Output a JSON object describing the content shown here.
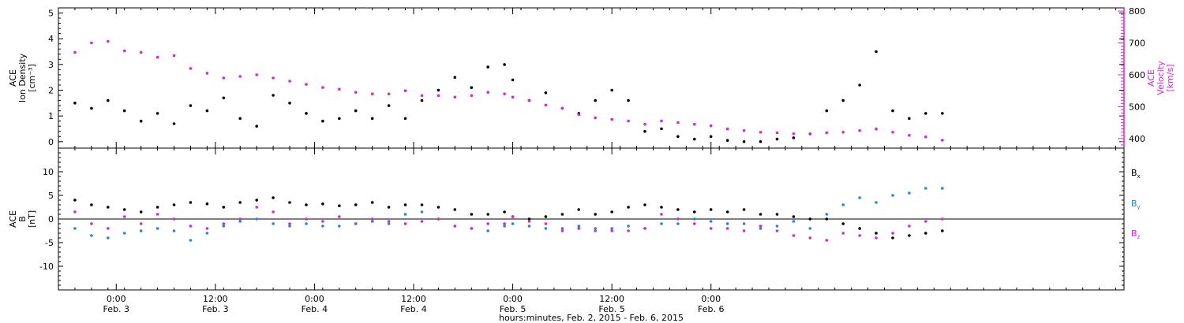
{
  "chart_data": [
    {
      "type": "scatter",
      "panel": "top",
      "ylabel_left": [
        "ACE",
        "Ion Density",
        "[cm⁻³]"
      ],
      "ylabel_right": [
        "ACE",
        "Velocity",
        "[km/s]"
      ],
      "ylim_left": [
        -0.25,
        5.2
      ],
      "ylim_right": [
        370,
        810
      ],
      "yticks_left": [
        "0",
        "1",
        "2",
        "3",
        "4",
        "5"
      ],
      "yticks_right": [
        "400",
        "500",
        "600",
        "700",
        "800"
      ],
      "x_unit": "hours since Feb. 2, 2015 00:00",
      "series": [
        {
          "name": "Ion Density",
          "color": "#000000",
          "x": [
            19.0,
            21,
            23,
            25,
            27,
            29,
            31,
            33,
            35,
            37,
            39,
            41,
            43,
            45,
            47,
            49,
            51,
            53,
            55,
            57,
            59,
            61,
            63,
            65,
            67,
            69,
            71,
            72,
            74,
            76,
            78,
            80,
            82,
            84,
            86,
            88,
            90,
            92,
            94,
            96,
            98,
            100,
            102,
            104,
            106,
            108,
            110,
            112,
            114,
            116,
            118,
            120,
            122,
            124
          ],
          "y": [
            1.5,
            1.3,
            1.6,
            1.2,
            0.8,
            1.1,
            0.7,
            1.4,
            1.2,
            1.7,
            0.9,
            0.6,
            1.8,
            1.5,
            1.1,
            0.8,
            0.9,
            1.2,
            0.9,
            1.4,
            0.9,
            1.6,
            2.0,
            2.5,
            2.1,
            2.9,
            3.0,
            2.4,
            1.6,
            1.9,
            1.3,
            1.1,
            1.6,
            2.0,
            1.6,
            0.4,
            0.5,
            0.2,
            0.1,
            0.2,
            0.05,
            0.0,
            0.0,
            0.1,
            0.15,
            0.3,
            1.2,
            1.6,
            2.2,
            3.5,
            1.2,
            0.9,
            1.1,
            1.1
          ]
        },
        {
          "name": "Velocity",
          "color": "#e020e0",
          "x": [
            19.0,
            21,
            23,
            25,
            27,
            29,
            31,
            33,
            35,
            37,
            39,
            41,
            43,
            45,
            47,
            49,
            51,
            53,
            55,
            57,
            59,
            61,
            63,
            65,
            67,
            69,
            71,
            72,
            74,
            76,
            78,
            80,
            82,
            84,
            86,
            88,
            90,
            92,
            94,
            96,
            98,
            100,
            102,
            104,
            106,
            108,
            110,
            112,
            114,
            116,
            118,
            120,
            122,
            124
          ],
          "y": [
            670,
            700,
            705,
            675,
            670,
            655,
            660,
            620,
            605,
            590,
            595,
            600,
            590,
            580,
            570,
            560,
            555,
            545,
            540,
            540,
            550,
            535,
            535,
            530,
            535,
            545,
            540,
            530,
            520,
            505,
            495,
            475,
            465,
            460,
            455,
            445,
            455,
            450,
            445,
            440,
            430,
            425,
            420,
            418,
            415,
            415,
            418,
            420,
            425,
            430,
            420,
            410,
            405,
            395
          ]
        }
      ]
    },
    {
      "type": "scatter",
      "panel": "bottom",
      "ylabel": [
        "ACE",
        "B",
        "[nT]"
      ],
      "ylim": [
        -15,
        15
      ],
      "yticks": [
        "-10",
        "-5",
        "0",
        "5",
        "10"
      ],
      "x_unit": "hours since Feb. 2, 2015 00:00",
      "series": [
        {
          "name": "Bx",
          "label_main": "B",
          "label_sub": "x",
          "color": "#000000",
          "x": [
            19.0,
            21,
            23,
            25,
            27,
            29,
            31,
            33,
            35,
            37,
            39,
            41,
            43,
            45,
            47,
            49,
            51,
            53,
            55,
            57,
            59,
            61,
            63,
            65,
            67,
            69,
            71,
            72,
            74,
            76,
            78,
            80,
            82,
            84,
            86,
            88,
            90,
            92,
            94,
            96,
            98,
            100,
            102,
            104,
            106,
            108,
            110,
            112,
            114,
            116,
            118,
            120,
            122,
            124
          ],
          "y": [
            4.0,
            3.0,
            2.5,
            2.0,
            1.5,
            2.5,
            3.0,
            3.5,
            3.2,
            2.5,
            3.5,
            4.0,
            4.5,
            3.5,
            3.0,
            3.2,
            2.8,
            3.0,
            3.5,
            2.5,
            3.0,
            3.0,
            2.5,
            2.0,
            1.0,
            1.0,
            1.5,
            0.5,
            0.0,
            0.5,
            1.0,
            2.0,
            1.0,
            1.5,
            2.5,
            3.0,
            2.5,
            2.0,
            1.5,
            2.0,
            1.5,
            2.0,
            1.0,
            1.0,
            0.5,
            0.0,
            0.0,
            -1.0,
            -2.0,
            -3.0,
            -4.0,
            -3.5,
            -3.0,
            -2.5
          ]
        },
        {
          "name": "By",
          "label_main": "B",
          "label_sub": "y",
          "color": "#1f86e6",
          "x": [
            19.0,
            21,
            23,
            25,
            27,
            29,
            31,
            33,
            35,
            37,
            39,
            41,
            43,
            45,
            47,
            49,
            51,
            53,
            55,
            57,
            59,
            61,
            63,
            65,
            67,
            69,
            71,
            72,
            74,
            76,
            78,
            80,
            82,
            84,
            86,
            88,
            90,
            92,
            94,
            96,
            98,
            100,
            102,
            104,
            106,
            108,
            110,
            112,
            114,
            116,
            118,
            120,
            122,
            124
          ],
          "y": [
            -2.0,
            -3.5,
            -4.0,
            -3.0,
            -2.5,
            -2.0,
            -2.5,
            -4.5,
            -3.0,
            -1.5,
            -0.5,
            0.0,
            -1.0,
            -1.5,
            -1.0,
            -1.5,
            -1.5,
            -1.0,
            -0.5,
            -1.0,
            1.0,
            1.5,
            0.0,
            -1.5,
            -2.0,
            -2.5,
            -1.5,
            -1.0,
            -1.5,
            -2.0,
            -2.0,
            -1.5,
            -2.0,
            -2.0,
            -1.5,
            -2.0,
            -1.0,
            -1.0,
            0.0,
            -0.5,
            -1.0,
            -1.0,
            -2.0,
            -1.5,
            -0.5,
            -2.0,
            1.0,
            3.0,
            4.5,
            3.5,
            5.0,
            5.5,
            6.5,
            6.5
          ]
        },
        {
          "name": "Bz",
          "label_main": "B",
          "label_sub": "z",
          "color": "#e020e0",
          "x": [
            19.0,
            21,
            23,
            25,
            27,
            29,
            31,
            33,
            35,
            37,
            39,
            41,
            43,
            45,
            47,
            49,
            51,
            53,
            55,
            57,
            59,
            61,
            63,
            65,
            67,
            69,
            71,
            72,
            74,
            76,
            78,
            80,
            82,
            84,
            86,
            88,
            90,
            92,
            94,
            96,
            98,
            100,
            102,
            104,
            106,
            108,
            110,
            112,
            114,
            116,
            118,
            120,
            122,
            124
          ],
          "y": [
            1.5,
            -1.0,
            -2.0,
            0.5,
            -1.0,
            1.0,
            0.0,
            -1.5,
            -2.0,
            -1.0,
            0.0,
            2.5,
            1.5,
            -1.0,
            0.0,
            -0.5,
            0.5,
            -1.0,
            0.0,
            -0.5,
            -1.0,
            -0.5,
            0.0,
            -1.5,
            -2.0,
            -1.0,
            -1.0,
            0.5,
            -0.5,
            -1.0,
            -2.5,
            -2.0,
            -2.5,
            -2.5,
            -2.5,
            -2.0,
            1.0,
            0.0,
            -1.0,
            -2.0,
            -2.0,
            -2.5,
            -1.5,
            -2.5,
            -3.5,
            -4.0,
            -4.5,
            -3.0,
            -3.5,
            -4.0,
            -3.0,
            -1.5,
            -0.5,
            0.0
          ]
        }
      ]
    }
  ],
  "x_axis": {
    "xlim": [
      17.0,
      146.0
    ],
    "ticks": [
      {
        "hour": 24,
        "time": "0:00",
        "day": "Feb. 3"
      },
      {
        "hour": 36,
        "time": "12:00",
        "day": "Feb. 3"
      },
      {
        "hour": 48,
        "time": "0:00",
        "day": "Feb. 4"
      },
      {
        "hour": 60,
        "time": "12:00",
        "day": "Feb. 4"
      },
      {
        "hour": 72,
        "time": "0:00",
        "day": "Feb. 5"
      },
      {
        "hour": 84,
        "time": "12:00",
        "day": "Feb. 5"
      },
      {
        "hour": 96,
        "time": "0:00",
        "day": "Feb. 6"
      }
    ],
    "xlabel": "hours:minutes, Feb.  2, 2015 - Feb.  6, 2015"
  }
}
